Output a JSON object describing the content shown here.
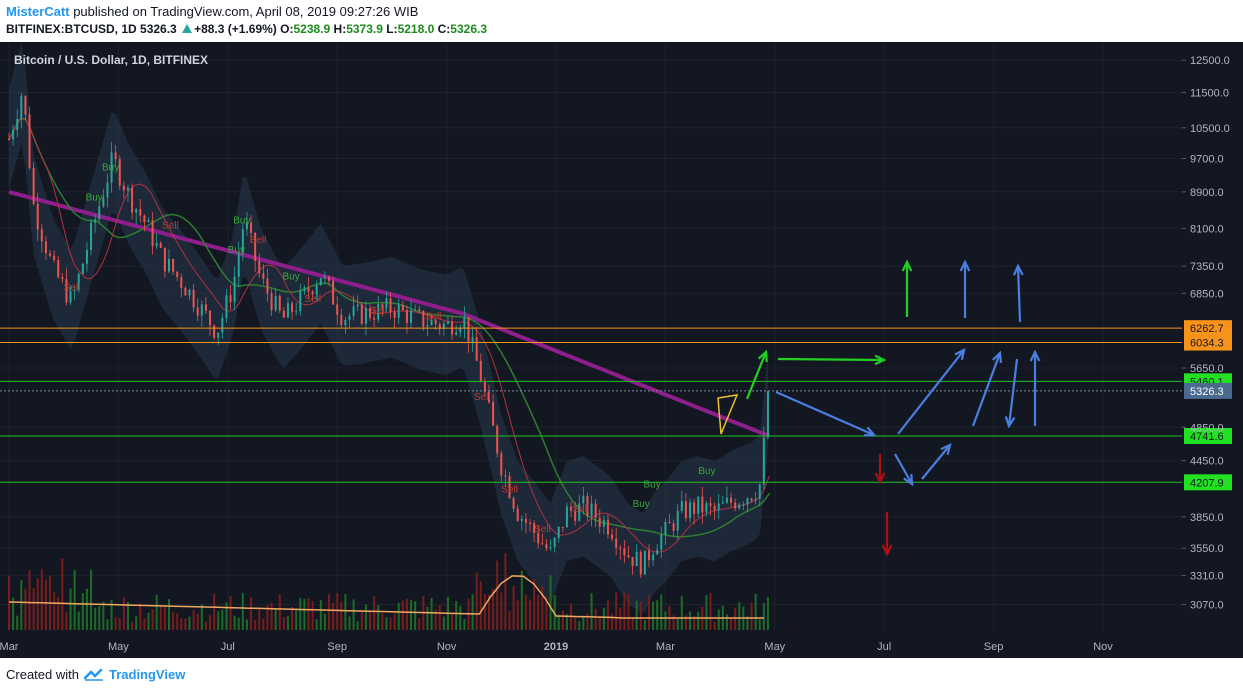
{
  "header": {
    "author": "MisterCatt",
    "published_text": "published on TradingView.com, April 08, 2019 09:27:26 WIB",
    "symbol": "BITFINEX:BTCUSD, 1D",
    "last": "5326.3",
    "change": "+88.3 (+1.69%)",
    "open_label": "O:",
    "open": "5238.9",
    "high_label": "H:",
    "high": "5373.9",
    "low_label": "L:",
    "low": "5218.0",
    "close_label": "C:",
    "close": "5326.3"
  },
  "footer": {
    "created_with": "Created with",
    "brand": "TradingView"
  },
  "colors": {
    "background": "#131722",
    "up": "#26a69a",
    "down": "#ef5350",
    "orange_line": "#f7931a",
    "green_line": "#1fc31f",
    "purple_ma": "#8e1e8c",
    "blue_arrow": "#4a7fe0",
    "green_arrow": "#22d022",
    "red_arrow": "#b01010"
  },
  "chart_data": {
    "type": "candlestick",
    "title": "Bitcoin / U.S. Dollar, 1D, BITFINEX",
    "x_ticks": [
      "Mar",
      "May",
      "Jul",
      "Sep",
      "Nov",
      "2019",
      "Mar",
      "May",
      "Jul",
      "Sep",
      "Nov"
    ],
    "y_ticks": [
      12500.0,
      11500.0,
      10500.0,
      9700.0,
      8900.0,
      8100.0,
      7350.0,
      6850.0,
      5650.0,
      4850.0,
      4450.0,
      3850.0,
      3550.0,
      3310.0,
      3070.0
    ],
    "ylim": [
      2950,
      12900
    ],
    "scale": "log",
    "horizontal_levels": [
      {
        "value": 6262.7,
        "label": "6262.7",
        "color": "orange"
      },
      {
        "value": 6034.3,
        "label": "6034.3",
        "color": "orange"
      },
      {
        "value": 5460.1,
        "label": "5460.1",
        "color": "green"
      },
      {
        "value": 4741.6,
        "label": "4741.6",
        "color": "green"
      },
      {
        "value": 4207.9,
        "label": "4207.9",
        "color": "green"
      }
    ],
    "last_price": {
      "value": 5326.3,
      "label": "5326.3"
    },
    "price_path": [
      [
        0,
        10200
      ],
      [
        0.25,
        11600
      ],
      [
        0.45,
        8600
      ],
      [
        0.8,
        7300
      ],
      [
        1.15,
        6700
      ],
      [
        1.5,
        8000
      ],
      [
        1.9,
        9700
      ],
      [
        2.2,
        8800
      ],
      [
        2.5,
        8200
      ],
      [
        2.8,
        7500
      ],
      [
        3.2,
        7000
      ],
      [
        3.5,
        6600
      ],
      [
        3.8,
        6200
      ],
      [
        4.1,
        7000
      ],
      [
        4.3,
        8300
      ],
      [
        4.6,
        7100
      ],
      [
        5.0,
        6400
      ],
      [
        5.3,
        6700
      ],
      [
        5.7,
        7200
      ],
      [
        6.1,
        6450
      ],
      [
        6.5,
        6500
      ],
      [
        7.0,
        6600
      ],
      [
        7.5,
        6400
      ],
      [
        8.0,
        6300
      ],
      [
        8.3,
        6450
      ],
      [
        8.6,
        5600
      ],
      [
        9.0,
        4400
      ],
      [
        9.3,
        3900
      ],
      [
        9.6,
        3700
      ],
      [
        9.9,
        3500
      ],
      [
        10.2,
        3900
      ],
      [
        10.5,
        3950
      ],
      [
        11.0,
        3750
      ],
      [
        11.3,
        3500
      ],
      [
        11.6,
        3400
      ],
      [
        11.8,
        3600
      ],
      [
        12.0,
        3700
      ],
      [
        12.3,
        3900
      ],
      [
        12.6,
        3950
      ],
      [
        12.9,
        3900
      ],
      [
        13.2,
        4000
      ],
      [
        13.4,
        4050
      ],
      [
        13.6,
        4100
      ],
      [
        13.75,
        4200
      ],
      [
        13.85,
        5100
      ],
      [
        13.9,
        5326
      ]
    ],
    "labels_on_chart": [
      "Buy",
      "Buy",
      "Buy",
      "Buy",
      "Buy",
      "Buy",
      "Buy",
      "Buy",
      "Sell",
      "Sell",
      "Sell",
      "Sell",
      "Sell",
      "Sell",
      "Sell",
      "Sell",
      "Sell",
      "Sell"
    ]
  }
}
